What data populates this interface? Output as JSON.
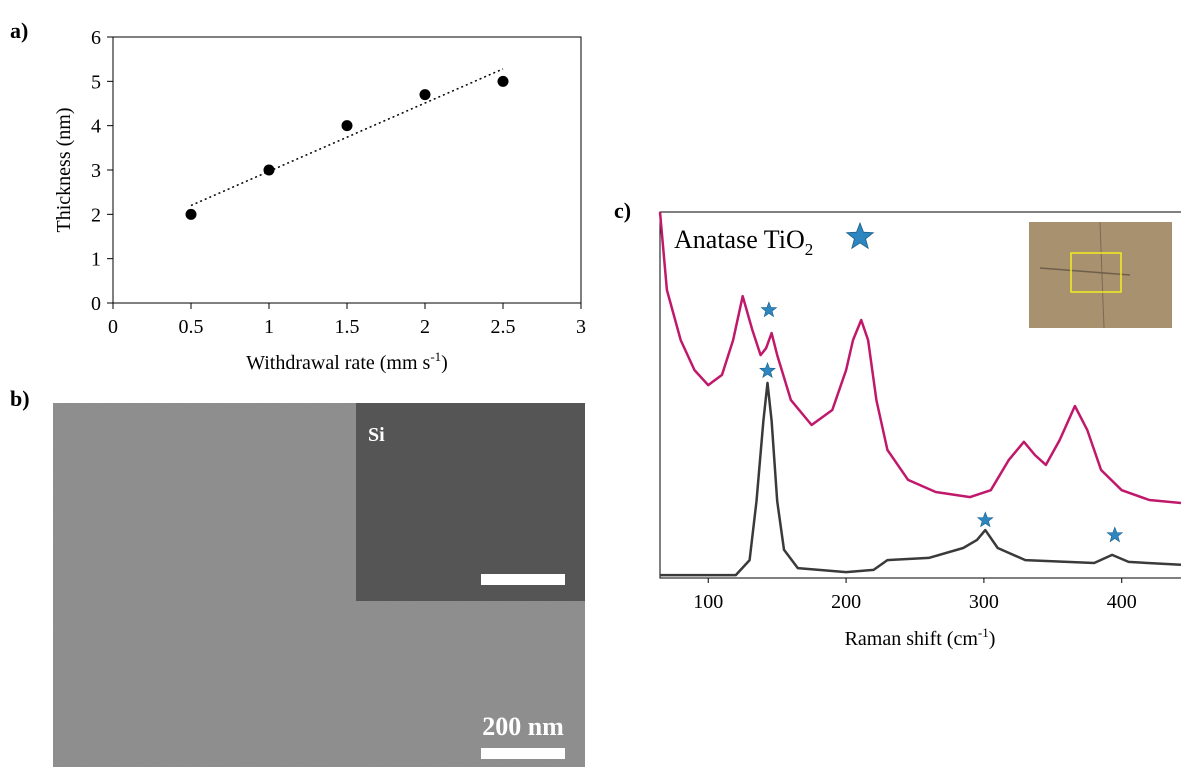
{
  "chart_data": [
    {
      "type": "scatter",
      "panel_label": "a)",
      "x": [
        0.5,
        1,
        1.5,
        2,
        2.5
      ],
      "values": [
        2,
        3,
        4,
        4.7,
        5
      ],
      "color": "#000000",
      "trendline": {
        "x": [
          0.5,
          2.5
        ],
        "values": [
          2.2,
          5.28
        ]
      },
      "xlim": [
        0,
        3
      ],
      "ylim": [
        0,
        6
      ],
      "xticks": [
        0,
        0.5,
        1,
        1.5,
        2,
        2.5,
        3
      ],
      "yticks": [
        0,
        1,
        2,
        3,
        4,
        5,
        6
      ],
      "x_label": {
        "text": "Withdrawal rate (mm s",
        "sup": "-1",
        "end": ")"
      },
      "y_label": "Thickness (nm)"
    },
    {
      "type": "line",
      "panel_label": "c)",
      "xlim": [
        65,
        443
      ],
      "ylim": [
        0,
        100
      ],
      "xticks": [
        100,
        200,
        300,
        400
      ],
      "x_label": {
        "text": "Raman shift (cm",
        "sup": "-1",
        "end": ")"
      },
      "legend": {
        "text": "Anatase TiO",
        "sub": "2"
      },
      "series": [
        {
          "color": "#c0186a",
          "x": [
            65,
            70,
            80,
            90,
            100,
            110,
            118,
            125,
            132,
            138,
            142,
            146,
            150,
            160,
            175,
            190,
            200,
            205,
            211,
            216,
            222,
            230,
            245,
            265,
            290,
            305,
            318,
            329,
            337,
            345,
            355,
            366,
            375,
            385,
            400,
            420,
            443
          ],
          "values": [
            100,
            78.7,
            65,
            56.8,
            52.7,
            55.5,
            65,
            77,
            67.8,
            60.9,
            62.8,
            66.9,
            60.9,
            48.6,
            41.8,
            45.9,
            56.8,
            65,
            70.5,
            65,
            48.6,
            35,
            26.8,
            23.5,
            22.1,
            24,
            32.2,
            37.2,
            33.6,
            30.9,
            37.7,
            47,
            40.4,
            29.5,
            24,
            21.3,
            20.5
          ]
        },
        {
          "color": "#3a3a3a",
          "x": [
            65,
            120,
            130,
            135,
            140,
            143,
            146,
            150,
            155,
            165,
            200,
            220,
            230,
            260,
            285,
            295,
            301,
            310,
            330,
            380,
            393,
            405,
            443
          ],
          "values": [
            0.8,
            0.8,
            4.9,
            21,
            43,
            53.3,
            43,
            21,
            7.7,
            2.7,
            1.6,
            2.2,
            4.9,
            5.5,
            8.2,
            10.4,
            13.1,
            8.2,
            4.9,
            4.1,
            6.3,
            4.4,
            3.6
          ]
        }
      ],
      "star_markers": {
        "color": "#2e86c1",
        "x": [
          144,
          143,
          301,
          395
        ],
        "values": [
          73.2,
          56.6,
          15.8,
          11.7
        ]
      }
    }
  ],
  "image_panel": {
    "label": "b)",
    "inset_label": "Si",
    "scale_label": "200 nm"
  }
}
